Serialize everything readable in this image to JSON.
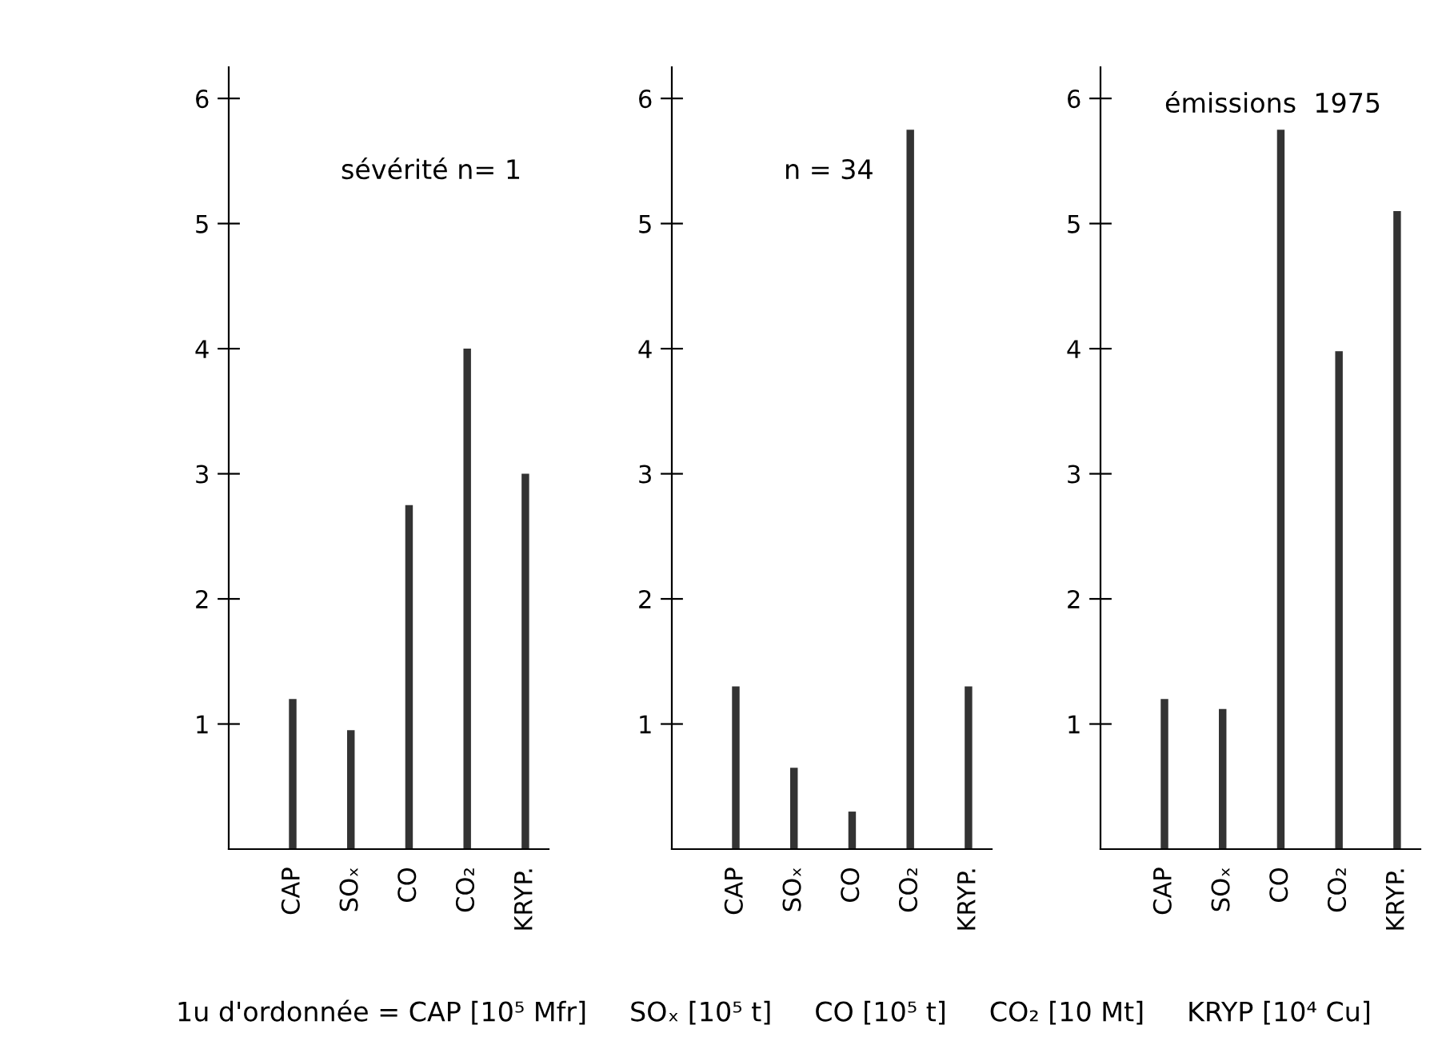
{
  "chart_data": [
    {
      "type": "bar",
      "title": "sévérité n= 1",
      "categories": [
        "CAP",
        "SOₓ",
        "CO",
        "CO₂",
        "KRYP."
      ],
      "values": [
        1.2,
        0.95,
        2.75,
        4.0,
        3.0
      ],
      "color": "#333333",
      "ylim": [
        0,
        6.25
      ],
      "yticks": [
        1,
        2,
        3,
        4,
        5,
        6
      ],
      "annotations": [
        "1u d'ordonnée = CAP [10⁵ Mfr]     SOₓ [10⁵ t]     CO [10⁵ t]     CO₂ [10 Mt]     KRYP [10⁴ Cu]"
      ]
    },
    {
      "type": "bar",
      "title": "n = 34",
      "categories": [
        "CAP",
        "SOₓ",
        "CO",
        "CO₂",
        "KRYP."
      ],
      "values": [
        1.3,
        0.65,
        0.3,
        5.75,
        1.3
      ],
      "color": "#333333",
      "ylim": [
        0,
        6.25
      ],
      "yticks": [
        1,
        2,
        3,
        4,
        5,
        6
      ]
    },
    {
      "type": "bar",
      "title": "émissions  1975",
      "categories": [
        "CAP",
        "SOₓ",
        "CO",
        "CO₂",
        "KRYP."
      ],
      "values": [
        1.2,
        1.12,
        5.75,
        3.98,
        5.1
      ],
      "color": "#333333",
      "ylim": [
        0,
        6.25
      ],
      "yticks": [
        1,
        2,
        3,
        4,
        5,
        6
      ]
    }
  ]
}
